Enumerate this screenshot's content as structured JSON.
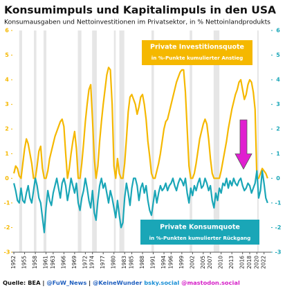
{
  "chart_data": {
    "type": "line",
    "title": "Konsumimpuls und Kapitalimpuls in den USA",
    "subtitle": "Konsumausgaben und Nettoinvestitionen im Privatsektor, in % Nettoinlandprodukts",
    "annotations": [
      {
        "title": "Private Investitionsquote",
        "text": "in %-Punkte kumulierter Anstieg",
        "color": "#f5b800"
      },
      {
        "title": "Private Konsumquote",
        "text": "in %-Punkten kumulierter Rückgang",
        "color": "#1aa6b7"
      }
    ],
    "footer": [
      {
        "text": "Quelle: BEA",
        "color": "#111111"
      },
      {
        "text": "|",
        "color": "#111111"
      },
      {
        "text": "@FuW_News",
        "color": "#1f5fbf"
      },
      {
        "text": "|",
        "color": "#111111"
      },
      {
        "text": "@KeineWunder",
        "color": "#1f5fbf"
      },
      {
        "text": "bsky.social",
        "color": "#1a8fd6"
      },
      {
        "text": "@mastodon.social",
        "color": "#d61fc8"
      }
    ],
    "xlim": [
      1951.6,
      2024
    ],
    "xticks": [
      1952,
      1955,
      1958,
      1961,
      1963,
      1966,
      1969,
      1972,
      1974,
      1977,
      1980,
      1983,
      1985,
      1988,
      1991,
      1994,
      1996,
      1999,
      2002,
      2005,
      2007,
      2010,
      2013,
      2016,
      2018,
      2020,
      2022
    ],
    "ylim": [
      -3,
      6
    ],
    "yticks": [
      -3,
      -2,
      -1,
      0,
      1,
      2,
      3,
      4,
      5,
      6
    ],
    "ycolor": "#f5b800",
    "y2lim": [
      -3,
      6
    ],
    "y2ticks": [
      -3,
      -2,
      -1,
      0,
      1,
      2,
      3,
      4,
      5,
      6
    ],
    "y2color": "#1aa6b7",
    "recessions": [
      [
        1953.5,
        1954.3
      ],
      [
        1957.6,
        1958.3
      ],
      [
        1960.3,
        1961.1
      ],
      [
        1969.9,
        1970.9
      ],
      [
        1973.9,
        1975.2
      ],
      [
        1980.0,
        1980.5
      ],
      [
        1981.5,
        1982.9
      ],
      [
        1990.5,
        1991.2
      ],
      [
        2001.2,
        2001.9
      ],
      [
        2007.9,
        2009.5
      ],
      [
        2020.1,
        2020.5
      ]
    ],
    "x": [
      1952,
      1952.5,
      1953,
      1953.5,
      1954,
      1954.5,
      1955,
      1955.5,
      1956,
      1956.5,
      1957,
      1957.5,
      1958,
      1958.5,
      1959,
      1959.5,
      1960,
      1960.5,
      1961,
      1961.5,
      1962,
      1962.5,
      1963,
      1963.5,
      1964,
      1964.5,
      1965,
      1965.5,
      1966,
      1966.5,
      1967,
      1967.5,
      1968,
      1968.5,
      1969,
      1969.5,
      1970,
      1970.5,
      1971,
      1971.5,
      1972,
      1972.5,
      1973,
      1973.5,
      1974,
      1974.5,
      1975,
      1975.5,
      1976,
      1976.5,
      1977,
      1977.5,
      1978,
      1978.5,
      1979,
      1979.5,
      1980,
      1980.5,
      1981,
      1981.5,
      1982,
      1982.5,
      1983,
      1983.5,
      1984,
      1984.5,
      1985,
      1985.5,
      1986,
      1986.5,
      1987,
      1987.5,
      1988,
      1988.5,
      1989,
      1989.5,
      1990,
      1990.5,
      1991,
      1991.5,
      1992,
      1992.5,
      1993,
      1993.5,
      1994,
      1994.5,
      1995,
      1995.5,
      1996,
      1996.5,
      1997,
      1997.5,
      1998,
      1998.5,
      1999,
      1999.5,
      2000,
      2000.5,
      2001,
      2001.5,
      2002,
      2002.5,
      2003,
      2003.5,
      2004,
      2004.5,
      2005,
      2005.5,
      2006,
      2006.5,
      2007,
      2007.5,
      2008,
      2008.5,
      2009,
      2009.5,
      2010,
      2010.5,
      2011,
      2011.5,
      2012,
      2012.5,
      2013,
      2013.5,
      2014,
      2014.5,
      2015,
      2015.5,
      2016,
      2016.5,
      2017,
      2017.5,
      2018,
      2018.5,
      2019,
      2019.5,
      2020,
      2020.5,
      2021,
      2021.5,
      2022,
      2022.5,
      2023
    ],
    "series": [
      {
        "name": "Private Investitionsquote",
        "color": "#f5b800",
        "axis": "y",
        "values": [
          0.2,
          0.5,
          0.4,
          0.1,
          0,
          0.6,
          1.2,
          1.6,
          1.4,
          1.0,
          0.6,
          0,
          0,
          0.5,
          1.1,
          1.3,
          0.4,
          0,
          0,
          0.3,
          0.8,
          1.1,
          1.4,
          1.7,
          1.9,
          2.1,
          2.3,
          2.4,
          2.1,
          1.0,
          0,
          0.4,
          1.0,
          1.5,
          1.9,
          1.2,
          0,
          0,
          0.6,
          1.4,
          2.3,
          3.0,
          3.6,
          3.8,
          2.4,
          0.8,
          0,
          0.5,
          1.5,
          2.3,
          3.0,
          3.6,
          4.2,
          4.5,
          4.4,
          3.0,
          0.5,
          0,
          0.8,
          0.2,
          0,
          0,
          0.6,
          1.6,
          2.7,
          3.3,
          3.4,
          3.2,
          3.0,
          2.6,
          2.9,
          3.3,
          3.4,
          3.0,
          2.4,
          1.5,
          0.9,
          0.2,
          0,
          0,
          0.3,
          0.6,
          1.0,
          1.5,
          2.0,
          2.3,
          2.4,
          2.7,
          3.0,
          3.3,
          3.6,
          3.9,
          4.1,
          4.3,
          4.4,
          4.4,
          3.5,
          2.0,
          0.5,
          0,
          0,
          0.2,
          0.6,
          1.1,
          1.6,
          1.9,
          2.2,
          2.4,
          2.2,
          1.6,
          0.8,
          0.2,
          0,
          0,
          0,
          0,
          0.3,
          0.7,
          1.1,
          1.5,
          2.0,
          2.4,
          2.8,
          3.1,
          3.4,
          3.6,
          3.9,
          4.0,
          3.6,
          3.2,
          3.4,
          3.8,
          4.0,
          3.9,
          3.5,
          2.8,
          0,
          0,
          0.2,
          0.4,
          0.3,
          0.2,
          0
        ]
      },
      {
        "name": "Private Konsumquote",
        "color": "#1aa6b7",
        "axis": "y2",
        "values": [
          -0.2,
          -0.5,
          -0.9,
          -1.0,
          -0.4,
          -0.9,
          -1.0,
          -0.6,
          -0.3,
          -0.8,
          -1.0,
          -0.5,
          0,
          -0.3,
          -0.8,
          -1.0,
          -1.6,
          -2.2,
          -1.2,
          -0.5,
          -0.9,
          -1.1,
          -0.6,
          -0.3,
          0,
          -0.4,
          -0.8,
          -0.2,
          0,
          -0.3,
          -0.9,
          -0.5,
          0,
          -0.3,
          -0.6,
          -0.2,
          -1.0,
          -1.3,
          -0.8,
          -0.5,
          0,
          -0.4,
          -0.9,
          -1.2,
          -0.5,
          -1.4,
          -1.7,
          -0.9,
          -0.3,
          0,
          -0.4,
          -0.2,
          -0.6,
          -1.0,
          -0.5,
          -0.8,
          -1.2,
          -1.6,
          -0.9,
          -1.5,
          -2.0,
          -1.8,
          -0.8,
          -0.2,
          -0.6,
          -1.1,
          -0.4,
          0,
          0,
          -0.3,
          -0.9,
          -0.4,
          -0.2,
          -0.6,
          -0.3,
          -0.9,
          -1.3,
          -1.5,
          -1.0,
          -0.5,
          -1.0,
          -0.6,
          -0.3,
          -0.5,
          -0.4,
          -0.2,
          -0.5,
          -0.3,
          -0.2,
          0,
          -0.3,
          -0.5,
          -0.2,
          0,
          -0.1,
          -0.3,
          0,
          -0.6,
          -1.0,
          -0.4,
          -0.7,
          -0.3,
          -0.5,
          -0.2,
          0,
          -0.4,
          -0.3,
          0,
          -0.2,
          -0.5,
          -0.3,
          -0.9,
          -1.2,
          -0.6,
          -0.9,
          -0.4,
          -0.6,
          -0.2,
          -0.3,
          0,
          -0.4,
          -0.1,
          -0.3,
          0,
          -0.2,
          -0.3,
          -0.1,
          0,
          -0.3,
          -0.5,
          -0.4,
          -0.2,
          -0.3,
          -0.6,
          -0.4,
          -0.2,
          0.3,
          -0.8,
          -0.5,
          0.3,
          -0.2,
          -0.8,
          -1.0
        ]
      }
    ]
  }
}
